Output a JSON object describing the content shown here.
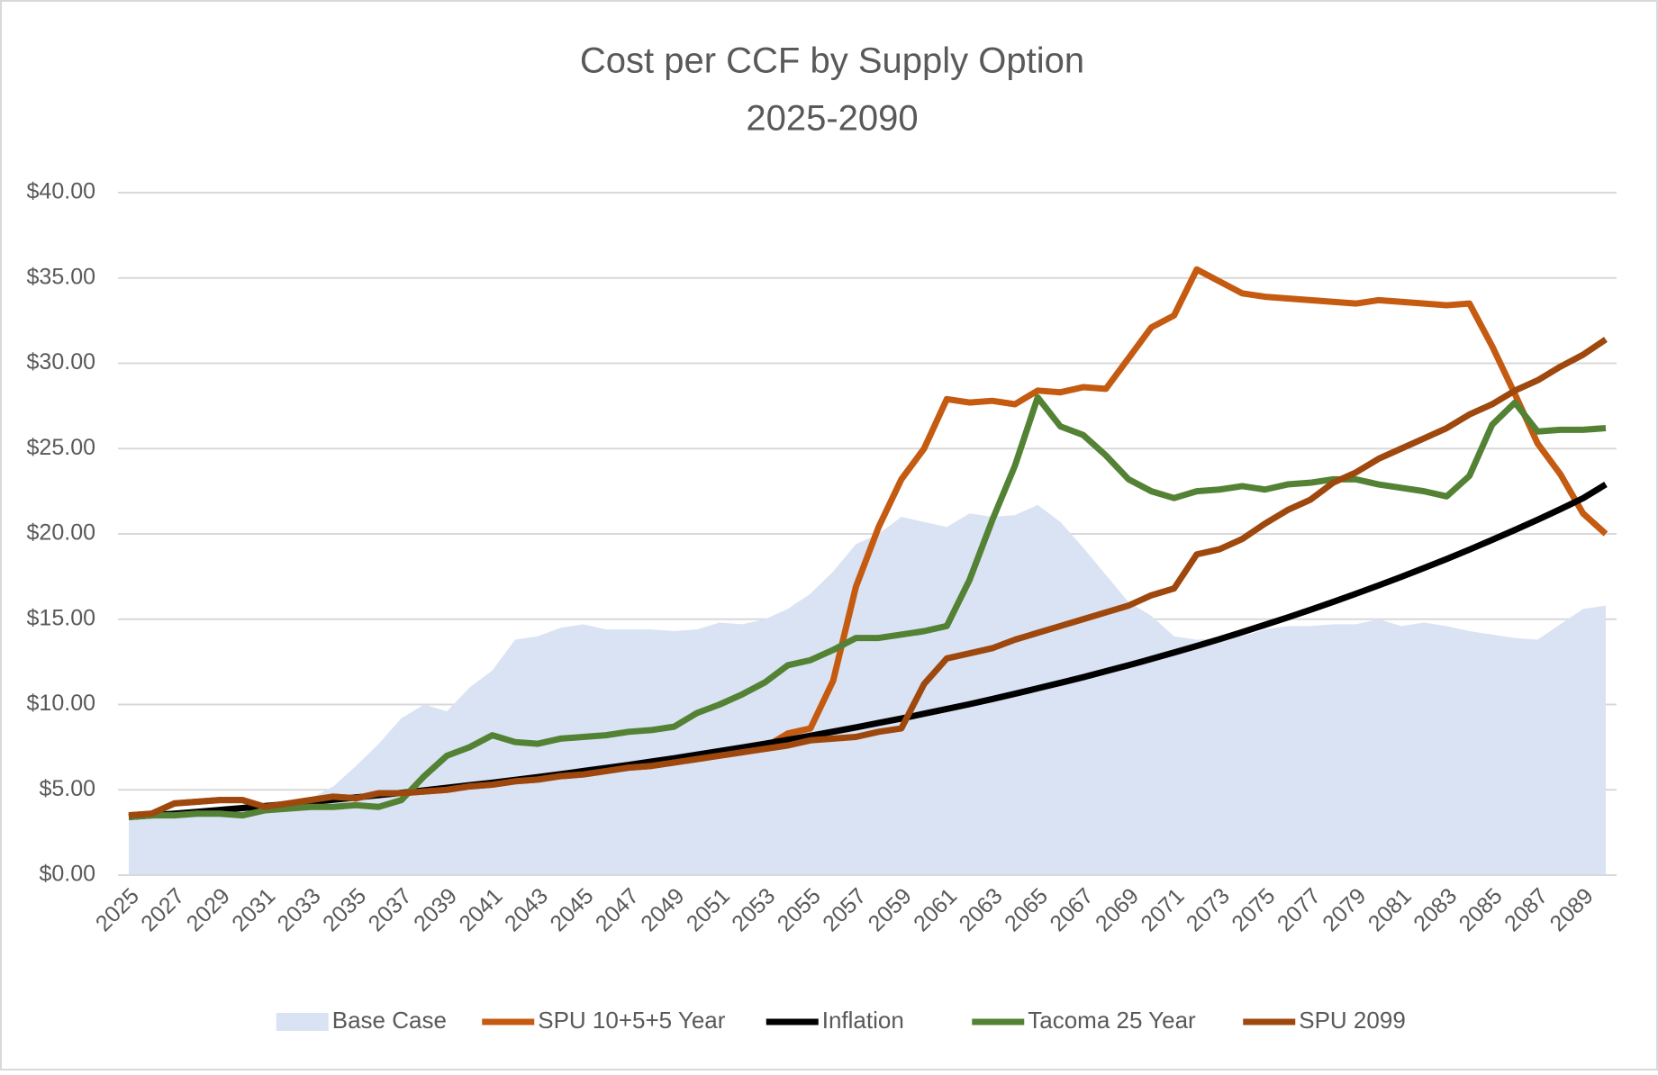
{
  "chart_data": {
    "type": "line",
    "title": "Cost per CCF by Supply Option",
    "subtitle": "2025-2090",
    "categories": [
      "2025",
      null,
      "2027",
      null,
      "2029",
      null,
      "2031",
      null,
      "2033",
      null,
      "2035",
      null,
      "2037",
      null,
      "2039",
      null,
      "2041",
      null,
      "2043",
      null,
      "2045",
      null,
      "2047",
      null,
      "2049",
      null,
      "2051",
      null,
      "2053",
      null,
      "2055",
      null,
      "2057",
      null,
      "2059",
      null,
      "2061",
      null,
      "2063",
      null,
      "2065",
      null,
      "2067",
      null,
      "2069",
      null,
      "2071",
      null,
      "2073",
      null,
      "2075",
      null,
      "2077",
      null,
      "2079",
      null,
      "2081",
      null,
      "2083",
      null,
      "2085",
      null,
      "2087",
      null,
      "2089",
      null
    ],
    "ylim": [
      0,
      40
    ],
    "yticks": [
      {
        "value": 0,
        "label": "$0.00"
      },
      {
        "value": 5,
        "label": "$5.00"
      },
      {
        "value": 10,
        "label": "$10.00"
      },
      {
        "value": 15,
        "label": "$15.00"
      },
      {
        "value": 20,
        "label": "$20.00"
      },
      {
        "value": 25,
        "label": "$25.00"
      },
      {
        "value": 30,
        "label": "$30.00"
      },
      {
        "value": 35,
        "label": "$35.00"
      },
      {
        "value": 40,
        "label": "$40.00"
      }
    ],
    "grid": true,
    "legend": "bottom",
    "series": [
      {
        "name": "Base Case",
        "color": "#dae3f3",
        "style": "area",
        "values": [
          3.3,
          3.4,
          3.6,
          3.7,
          3.8,
          3.9,
          4.0,
          4.2,
          4.5,
          5.2,
          6.4,
          7.7,
          9.2,
          10.0,
          9.6,
          11.0,
          12.0,
          13.8,
          14.0,
          14.5,
          14.7,
          14.4,
          14.4,
          14.4,
          14.3,
          14.4,
          14.8,
          14.7,
          15.0,
          15.6,
          16.5,
          17.8,
          19.4,
          20.0,
          21.0,
          20.7,
          20.4,
          21.2,
          21.0,
          21.1,
          21.7,
          20.7,
          19.2,
          17.6,
          16.0,
          15.2,
          14.0,
          13.8,
          13.9,
          14.0,
          14.4,
          14.6,
          14.6,
          14.7,
          14.7,
          15.0,
          14.6,
          14.8,
          14.6,
          14.3,
          14.1,
          13.9,
          13.8,
          14.7,
          15.6,
          15.8
        ]
      },
      {
        "name": "SPU 10+5+5 Year",
        "color": "#c55a11",
        "style": "line",
        "values": [
          3.5,
          3.6,
          4.2,
          4.3,
          4.4,
          4.4,
          4.0,
          4.2,
          4.4,
          4.6,
          4.5,
          4.8,
          4.8,
          4.9,
          5.0,
          5.2,
          5.3,
          5.5,
          5.6,
          5.8,
          5.9,
          6.1,
          6.3,
          6.4,
          6.6,
          6.8,
          7.0,
          7.2,
          7.5,
          8.3,
          8.6,
          11.4,
          16.9,
          20.4,
          23.2,
          25.0,
          27.9,
          27.7,
          27.8,
          27.6,
          28.4,
          28.3,
          28.6,
          28.5,
          30.3,
          32.1,
          32.8,
          35.5,
          34.8,
          34.1,
          33.9,
          33.8,
          33.7,
          33.6,
          33.5,
          33.7,
          33.6,
          33.5,
          33.4,
          33.5,
          31.0,
          28.2,
          25.3,
          23.5,
          21.2,
          20.0
        ]
      },
      {
        "name": "Inflation",
        "color": "#000000",
        "style": "line",
        "values": [
          3.4,
          3.5,
          3.6,
          3.71,
          3.82,
          3.93,
          4.05,
          4.17,
          4.29,
          4.42,
          4.55,
          4.69,
          4.82,
          4.97,
          5.12,
          5.27,
          5.42,
          5.58,
          5.75,
          5.92,
          6.1,
          6.28,
          6.46,
          6.66,
          6.85,
          7.06,
          7.27,
          7.48,
          7.7,
          7.93,
          8.17,
          8.41,
          8.66,
          8.92,
          9.18,
          9.46,
          9.74,
          10.02,
          10.32,
          10.63,
          10.95,
          11.27,
          11.6,
          11.95,
          12.3,
          12.67,
          13.05,
          13.43,
          13.83,
          14.24,
          14.67,
          15.1,
          15.55,
          16.01,
          16.49,
          16.98,
          17.48,
          18.0,
          18.53,
          19.08,
          19.65,
          20.23,
          20.83,
          21.45,
          22.09,
          22.9
        ]
      },
      {
        "name": "Tacoma 25 Year",
        "color": "#548235",
        "style": "line",
        "values": [
          3.4,
          3.5,
          3.5,
          3.6,
          3.6,
          3.5,
          3.8,
          3.9,
          4.0,
          4.0,
          4.1,
          4.0,
          4.4,
          5.8,
          7.0,
          7.5,
          8.2,
          7.8,
          7.7,
          8.0,
          8.1,
          8.2,
          8.4,
          8.5,
          8.7,
          9.5,
          10.0,
          10.6,
          11.3,
          12.3,
          12.6,
          13.2,
          13.9,
          13.9,
          14.1,
          14.3,
          14.6,
          17.3,
          20.8,
          24.0,
          28.0,
          26.3,
          25.8,
          24.6,
          23.2,
          22.5,
          22.1,
          22.5,
          22.6,
          22.8,
          22.6,
          22.9,
          23.0,
          23.2,
          23.2,
          22.9,
          22.7,
          22.5,
          22.2,
          23.4,
          26.4,
          27.7,
          26.0,
          26.1,
          26.1,
          26.2
        ]
      },
      {
        "name": "SPU 2099",
        "color": "#9e480e",
        "style": "line",
        "values": [
          3.5,
          3.6,
          4.2,
          4.3,
          4.4,
          4.4,
          4.0,
          4.2,
          4.4,
          4.6,
          4.5,
          4.8,
          4.8,
          4.9,
          5.0,
          5.2,
          5.3,
          5.5,
          5.6,
          5.8,
          5.9,
          6.1,
          6.3,
          6.4,
          6.6,
          6.8,
          7.0,
          7.2,
          7.4,
          7.6,
          7.9,
          8.0,
          8.1,
          8.4,
          8.6,
          11.2,
          12.7,
          13.0,
          13.3,
          13.8,
          14.2,
          14.6,
          15.0,
          15.4,
          15.8,
          16.4,
          16.8,
          18.8,
          19.1,
          19.7,
          20.6,
          21.4,
          22.0,
          23.0,
          23.6,
          24.4,
          25.0,
          25.6,
          26.2,
          27.0,
          27.6,
          28.4,
          29.0,
          29.8,
          30.5,
          31.4
        ]
      }
    ]
  }
}
